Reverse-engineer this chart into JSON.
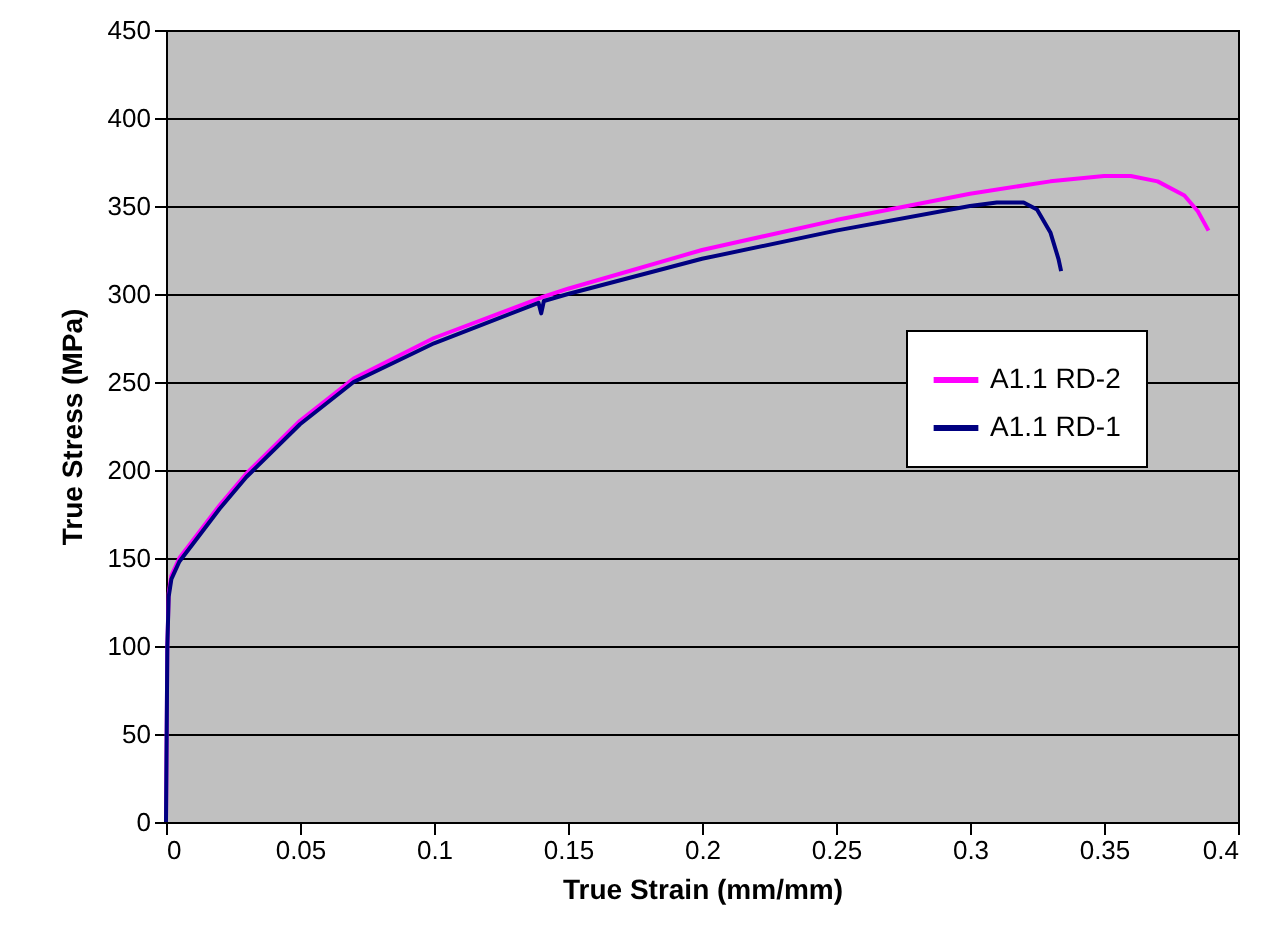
{
  "chart_data": {
    "type": "line",
    "xlabel": "True Strain (mm/mm)",
    "ylabel": "True Stress (MPa)",
    "xlim": [
      0,
      0.4
    ],
    "ylim": [
      0,
      450
    ],
    "xticks": [
      0,
      0.05,
      0.1,
      0.15,
      0.2,
      0.25,
      0.3,
      0.35,
      0.4
    ],
    "yticks": [
      0,
      50,
      100,
      150,
      200,
      250,
      300,
      350,
      400,
      450
    ],
    "grid": "y",
    "legend": "right",
    "marker": "none",
    "line_style": "solid",
    "series": [
      {
        "name": "A1.1 RD-2",
        "color": "#ff00ff",
        "x": [
          0,
          0.0005,
          0.001,
          0.002,
          0.005,
          0.01,
          0.02,
          0.03,
          0.05,
          0.07,
          0.1,
          0.14,
          0.15,
          0.2,
          0.25,
          0.3,
          0.33,
          0.35,
          0.36,
          0.37,
          0.38,
          0.385,
          0.389
        ],
        "values": [
          0,
          100,
          130,
          140,
          150,
          160,
          180,
          198,
          228,
          252,
          275,
          298,
          303,
          325,
          342,
          357,
          364,
          367,
          367,
          364,
          356,
          347,
          336
        ]
      },
      {
        "name": "A1.1 RD-1",
        "color": "#000080",
        "x": [
          0,
          0.0005,
          0.001,
          0.002,
          0.005,
          0.01,
          0.02,
          0.03,
          0.05,
          0.07,
          0.1,
          0.139,
          0.14,
          0.141,
          0.15,
          0.2,
          0.25,
          0.3,
          0.31,
          0.32,
          0.325,
          0.33,
          0.333,
          0.334
        ],
        "values": [
          0,
          100,
          128,
          138,
          148,
          158,
          178,
          196,
          226,
          250,
          272,
          295,
          289,
          296,
          300,
          320,
          336,
          350,
          352,
          352,
          348,
          335,
          320,
          313
        ]
      }
    ]
  }
}
